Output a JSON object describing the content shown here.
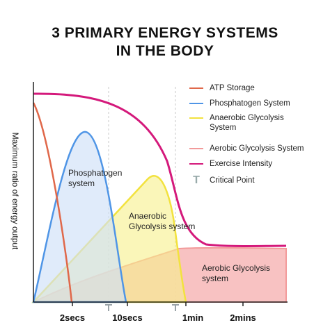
{
  "title_line1": "3 PRIMARY ENERGY SYSTEMS",
  "title_line2": "IN THE BODY",
  "ylabel": "Maximum ratio of energy output",
  "legend": [
    {
      "label": "ATP Storage",
      "color": "#e0684a"
    },
    {
      "label": "Phosphatogen System",
      "color": "#4f95e6"
    },
    {
      "label": "Anaerobic Glycolysis System",
      "color": "#f2e23e"
    },
    {
      "label": "Aerobic Glycolysis System",
      "color": "#f29a9a"
    },
    {
      "label": "Exercise Intensity",
      "color": "#d4197b"
    },
    {
      "label": "Critical Point",
      "icon": "T-critical-point-icon",
      "color": "#9aa3a8"
    }
  ],
  "area_labels": {
    "phosphatogen": [
      "Phosphatogen",
      "system"
    ],
    "anaerobic": [
      "Anaerobic",
      "Glycolysis system"
    ],
    "aerobic": [
      "Aerobic Glycolysis",
      "system"
    ]
  },
  "chart_data": {
    "type": "area",
    "x_ticks": [
      "2secs",
      "10secs",
      "1min",
      "2mins"
    ],
    "critical_points": 2,
    "series": [
      {
        "name": "ATP Storage",
        "type": "line",
        "color": "#e0684a"
      },
      {
        "name": "Phosphatogen System",
        "type": "area",
        "color": "#4f95e6"
      },
      {
        "name": "Anaerobic Glycolysis System",
        "type": "area",
        "color": "#f2e23e"
      },
      {
        "name": "Aerobic Glycolysis System",
        "type": "area",
        "color": "#f29a9a"
      },
      {
        "name": "Exercise Intensity",
        "type": "line",
        "color": "#d4197b"
      }
    ]
  }
}
